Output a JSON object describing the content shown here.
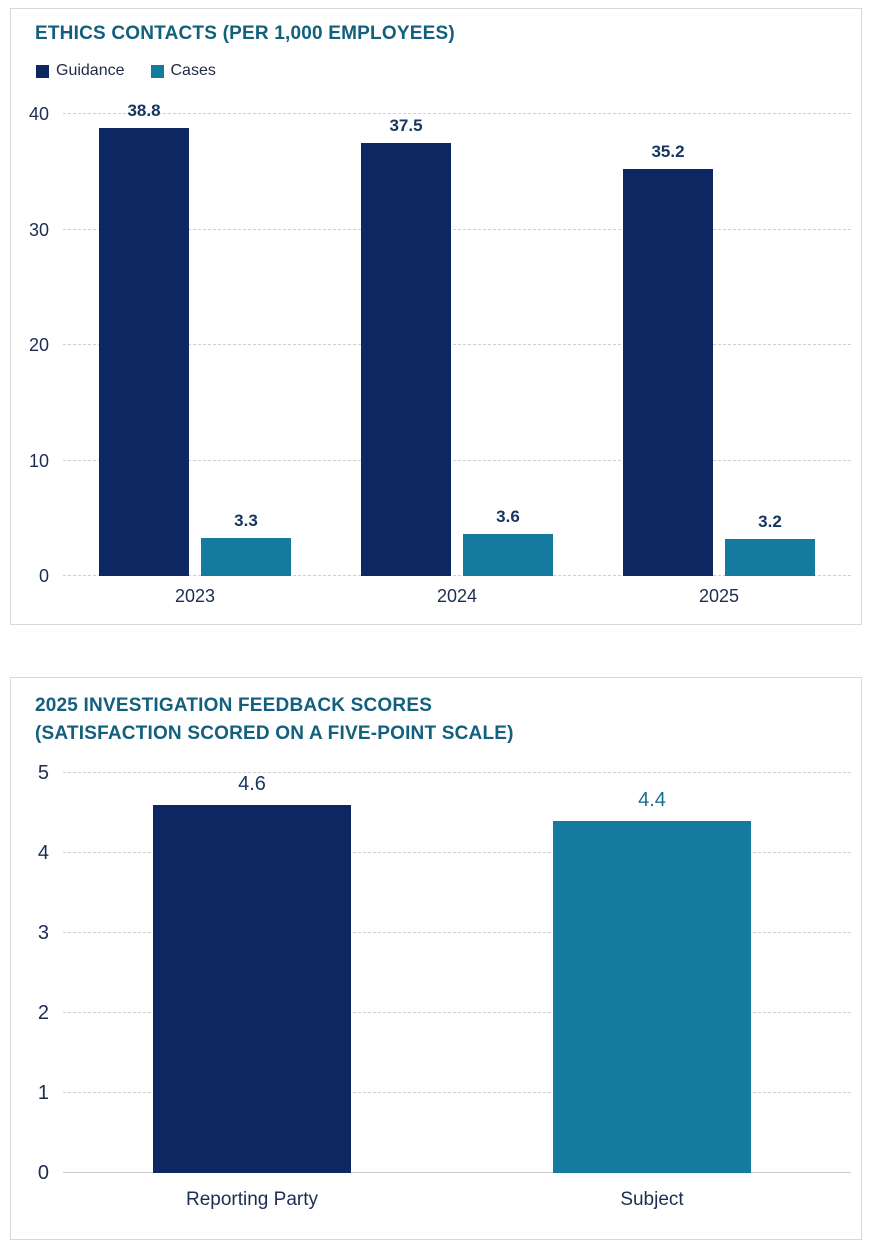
{
  "theme": {
    "title_teal": "#12607e",
    "bar_navy": "#0d2763",
    "bar_teal": "#147a9e",
    "text_navy": "#1b2e52",
    "legend_text": "#1f2b45",
    "label_navy": "#15375f",
    "label_teal": "#17718e",
    "grid": "#cfcfcf",
    "panel_border": "#d9d9d9",
    "background": "#ffffff"
  },
  "chart_data": [
    {
      "name": "ethics-contacts",
      "type": "bar",
      "title": "ETHICS CONTACTS (PER 1,000 EMPLOYEES)",
      "categories": [
        "2023",
        "2024",
        "2025"
      ],
      "series": [
        {
          "name": "Guidance",
          "color": "#0d2763",
          "label_color": "#15375f",
          "values": [
            38.8,
            37.5,
            35.2
          ]
        },
        {
          "name": "Cases",
          "color": "#147a9e",
          "label_color": "#15375f",
          "values": [
            3.3,
            3.6,
            3.2
          ]
        }
      ],
      "legend": [
        {
          "label": "Guidance",
          "color": "#0d2763"
        },
        {
          "label": "Cases",
          "color": "#147a9e"
        }
      ],
      "legend_position": "top-left",
      "xlabel": "",
      "ylabel": "",
      "ylim": [
        0,
        40
      ],
      "yticks": [
        0,
        10,
        20,
        30,
        40
      ],
      "grid": "dashed-horizontal",
      "zero_line": "dashed"
    },
    {
      "name": "investigation-feedback-scores",
      "type": "bar",
      "title": "2025 INVESTIGATION FEEDBACK SCORES (SATISFACTION SCORED ON A FIVE-POINT SCALE)",
      "title_lines": [
        "2025 INVESTIGATION FEEDBACK SCORES",
        "(SATISFACTION SCORED ON A FIVE-POINT SCALE)"
      ],
      "categories": [
        "Reporting Party",
        "Subject"
      ],
      "series": [
        {
          "name": "Satisfaction",
          "colors": [
            "#0d2763",
            "#147a9e"
          ],
          "label_colors": [
            "#15375f",
            "#17718e"
          ],
          "values": [
            4.6,
            4.4
          ]
        }
      ],
      "legend_position": "none",
      "xlabel": "",
      "ylabel": "",
      "ylim": [
        0,
        5
      ],
      "yticks": [
        0,
        1,
        2,
        3,
        4,
        5
      ],
      "grid": "dashed-horizontal",
      "zero_line": "solid"
    }
  ]
}
